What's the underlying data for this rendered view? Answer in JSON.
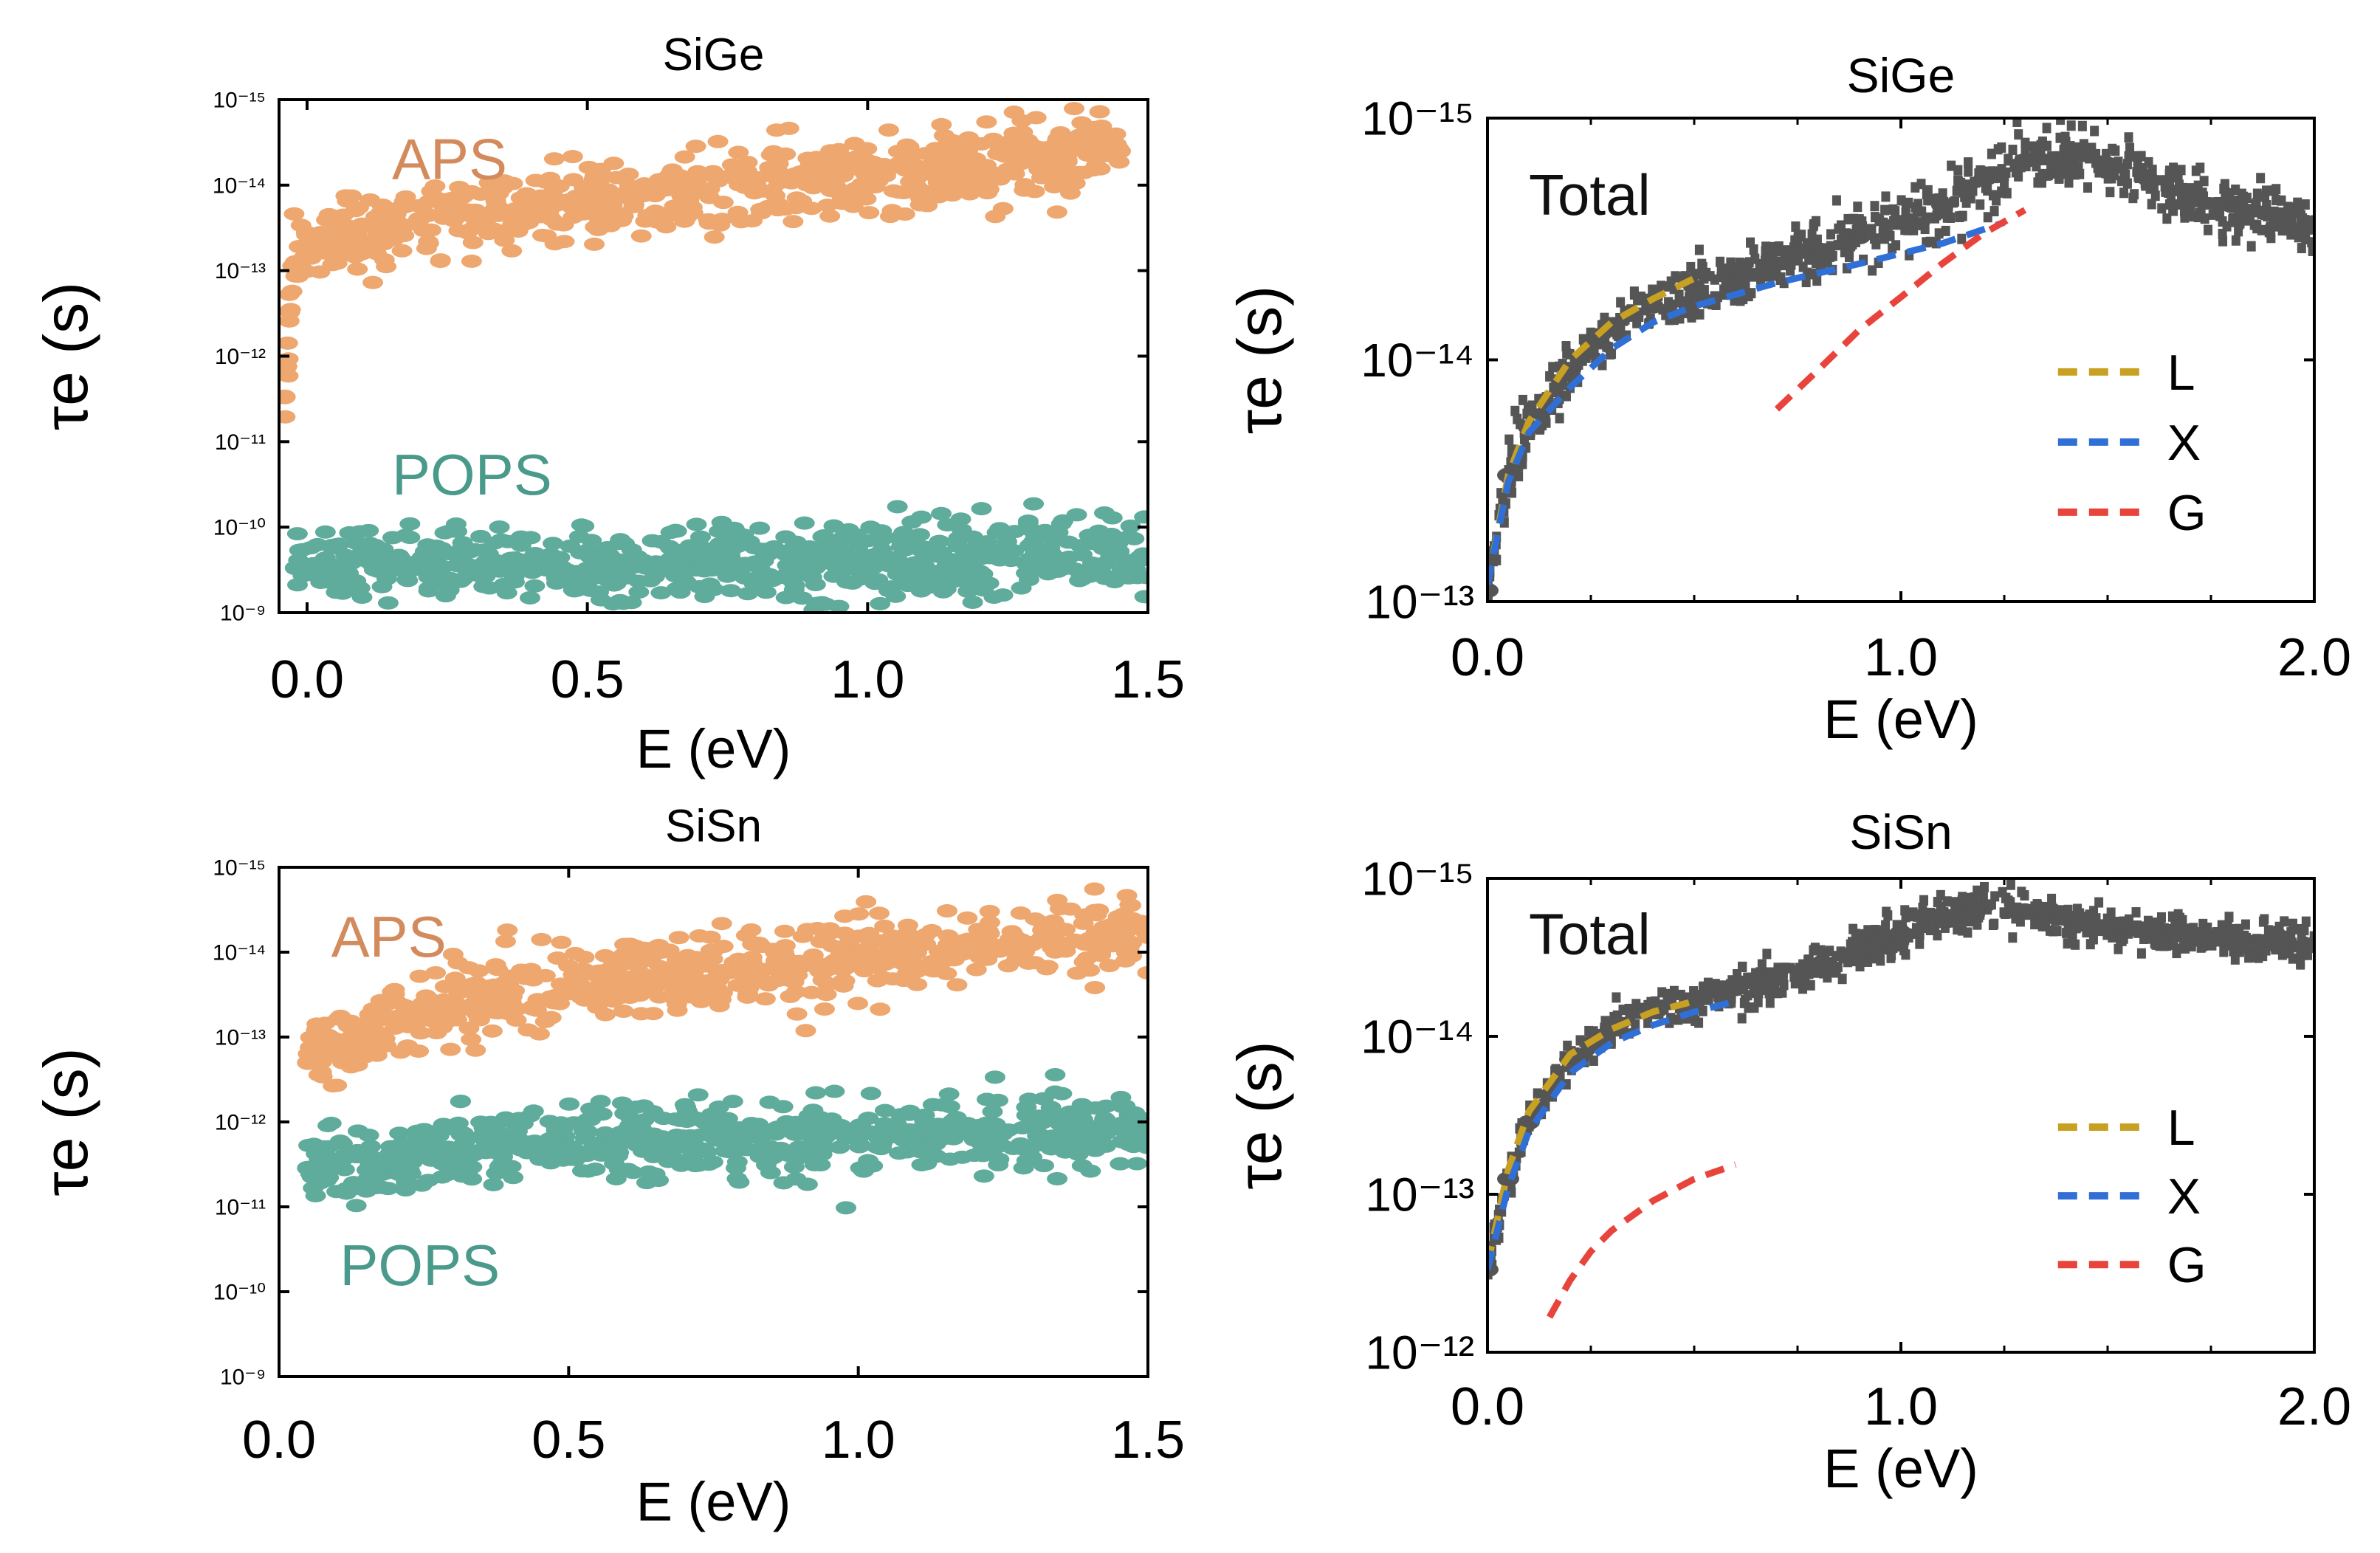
{
  "chart_data": [
    {
      "type": "scatter",
      "title": "SiGe",
      "xlabel": "E (eV)",
      "ylabel": "τe (s)",
      "xlim": [
        -0.05,
        1.5
      ],
      "ylim": [
        1e-09,
        1e-15
      ],
      "yscale": "log",
      "xticks": [
        "0.0",
        "0.5",
        "1.0",
        "1.5"
      ],
      "yticks": [
        "10⁻¹⁵",
        "10⁻¹⁴",
        "10⁻¹³",
        "10⁻¹²",
        "10⁻¹¹",
        "10⁻¹⁰",
        "10⁻⁹"
      ],
      "annotations": [
        "APS",
        "POPS"
      ],
      "series": [
        {
          "name": "APS",
          "color": "#eda76f",
          "x": [
            -0.04,
            -0.04,
            -0.02,
            0.0,
            0.1,
            0.2,
            0.3,
            0.4,
            0.5,
            0.6,
            0.7,
            0.8,
            0.9,
            1.0,
            1.1,
            1.2,
            1.3,
            1.4,
            1.45
          ],
          "y": [
            3e-12,
            1.5e-12,
            8e-14,
            5e-14,
            3e-14,
            2.5e-14,
            2e-14,
            1.8e-14,
            1.5e-14,
            1.3e-14,
            1.2e-14,
            1e-14,
            9e-15,
            8e-15,
            7e-15,
            6e-15,
            5e-15,
            4.5e-15,
            4e-15
          ]
        },
        {
          "name": "POPS",
          "color": "#5fab9c",
          "x": [
            -0.02,
            0.2,
            0.4,
            0.6,
            0.8,
            1.0,
            1.2,
            1.3,
            1.5
          ],
          "y": [
            3e-10,
            2.5e-10,
            2.6e-10,
            2.5e-10,
            2.6e-10,
            2.5e-10,
            2.3e-10,
            2e-10,
            2.2e-10
          ]
        }
      ]
    },
    {
      "type": "scatter",
      "title": "SiGe",
      "xlabel": "E (eV)",
      "ylabel": "τe (s)",
      "xlim": [
        0,
        2
      ],
      "ylim": [
        1e-13,
        1e-15
      ],
      "yscale": "log",
      "xticks": [
        "0.0",
        "1.0",
        "2.0"
      ],
      "yticks": [
        "10⁻¹⁵",
        "10⁻¹⁴",
        "10⁻¹³"
      ],
      "annotations": [
        "Total"
      ],
      "legend": {
        "location": "lower-right",
        "entries": [
          "L",
          "X",
          "G"
        ]
      },
      "series": [
        {
          "name": "Total",
          "color": "#555555",
          "x": [
            0.0,
            0.05,
            0.1,
            0.2,
            0.3,
            0.4,
            0.5,
            0.6,
            0.7,
            0.8,
            0.9,
            1.0,
            1.1,
            1.2,
            1.3,
            1.4,
            1.5,
            1.6,
            1.7,
            1.8,
            1.9,
            2.0
          ],
          "y": [
            9e-14,
            3e-14,
            1.9e-14,
            1.1e-14,
            7.5e-15,
            6e-15,
            5e-15,
            4.5e-15,
            4e-15,
            3.5e-15,
            3.1e-15,
            2.7e-15,
            2.3e-15,
            1.8e-15,
            1.5e-15,
            1.45e-15,
            1.55e-15,
            1.8e-15,
            2.1e-15,
            2.3e-15,
            2.5e-15,
            2.7e-15
          ]
        },
        {
          "name": "L",
          "color": "#c8a022",
          "x": [
            0.0,
            0.05,
            0.1,
            0.2,
            0.3,
            0.4,
            0.5
          ],
          "y": [
            8.5e-14,
            3e-14,
            1.8e-14,
            1e-14,
            7e-15,
            5.6e-15,
            4.6e-15
          ]
        },
        {
          "name": "X",
          "color": "#2f6fd6",
          "x": [
            0.0,
            0.05,
            0.1,
            0.2,
            0.3,
            0.4,
            0.5,
            0.7,
            0.9,
            1.1,
            1.25
          ],
          "y": [
            8.5e-14,
            3.2e-14,
            2e-14,
            1.3e-14,
            9e-15,
            7e-15,
            6e-15,
            4.8e-15,
            4e-15,
            3.3e-15,
            2.7e-15
          ]
        },
        {
          "name": "G",
          "color": "#e8443c",
          "x": [
            0.7,
            0.8,
            0.9,
            1.0,
            1.1,
            1.2,
            1.3
          ],
          "y": [
            1.6e-14,
            1.1e-14,
            7.5e-15,
            5.5e-15,
            4e-15,
            3e-15,
            2.4e-15
          ]
        }
      ]
    },
    {
      "type": "scatter",
      "title": "SiSn",
      "xlabel": "E (eV)",
      "ylabel": "τe (s)",
      "xlim": [
        0,
        1.5
      ],
      "ylim": [
        1e-09,
        1e-15
      ],
      "yscale": "log",
      "xticks": [
        "0.0",
        "0.5",
        "1.0",
        "1.5"
      ],
      "yticks": [
        "10⁻¹⁵",
        "10⁻¹⁴",
        "10⁻¹³",
        "10⁻¹²",
        "10⁻¹¹",
        "10⁻¹⁰",
        "10⁻⁹"
      ],
      "annotations": [
        "APS",
        "POPS"
      ],
      "series": [
        {
          "name": "APS",
          "color": "#eda76f",
          "x": [
            0.05,
            0.1,
            0.2,
            0.3,
            0.4,
            0.5,
            0.6,
            0.7,
            0.8,
            0.9,
            1.0,
            1.1,
            1.2,
            1.3,
            1.4,
            1.5
          ],
          "y": [
            2e-13,
            1.5e-13,
            6e-14,
            4e-14,
            3e-14,
            2.5e-14,
            2e-14,
            1.8e-14,
            1.6e-14,
            1.4e-14,
            1.2e-14,
            1e-14,
            9e-15,
            8e-15,
            7e-15,
            6e-15
          ]
        },
        {
          "name": "POPS",
          "color": "#5fab9c",
          "x": [
            0.05,
            0.2,
            0.4,
            0.6,
            0.8,
            1.0,
            1.2,
            1.4,
            1.5
          ],
          "y": [
            3.5e-12,
            2.8e-12,
            1.6e-12,
            1.6e-12,
            1.6e-12,
            1.5e-12,
            1.4e-12,
            1.3e-12,
            1.3e-12
          ]
        }
      ]
    },
    {
      "type": "scatter",
      "title": "SiSn",
      "xlabel": "E (eV)",
      "ylabel": "τe (s)",
      "xlim": [
        0,
        2
      ],
      "ylim": [
        1e-12,
        1e-15
      ],
      "yscale": "log",
      "xticks": [
        "0.0",
        "1.0",
        "2.0"
      ],
      "yticks": [
        "10⁻¹⁵",
        "10⁻¹⁴",
        "10⁻¹³",
        "10⁻¹²"
      ],
      "annotations": [
        "Total"
      ],
      "legend": {
        "location": "lower-right",
        "entries": [
          "L",
          "X",
          "G"
        ]
      },
      "series": [
        {
          "name": "Total",
          "color": "#555555",
          "x": [
            0.0,
            0.05,
            0.1,
            0.2,
            0.3,
            0.4,
            0.5,
            0.6,
            0.7,
            0.8,
            0.9,
            1.0,
            1.1,
            1.2,
            1.3,
            1.4,
            1.5,
            1.6,
            1.7,
            1.8,
            1.9,
            2.0
          ],
          "y": [
            3e-13,
            8e-14,
            3.5e-14,
            1.4e-14,
            9e-15,
            7e-15,
            6e-15,
            5e-15,
            4.2e-15,
            3.5e-15,
            2.8e-15,
            2.2e-15,
            1.7e-15,
            1.5e-15,
            1.6e-15,
            1.8e-15,
            2e-15,
            2.2e-15,
            2.4e-15,
            2.5e-15,
            2.5e-15,
            2.6e-15
          ]
        },
        {
          "name": "L",
          "color": "#c8a022",
          "x": [
            0.0,
            0.05,
            0.1,
            0.2,
            0.3,
            0.4,
            0.5
          ],
          "y": [
            2.8e-13,
            7e-14,
            3e-14,
            1.3e-14,
            9e-15,
            7e-15,
            6e-15
          ]
        },
        {
          "name": "X",
          "color": "#2f6fd6",
          "x": [
            0.0,
            0.05,
            0.1,
            0.2,
            0.3,
            0.4,
            0.5,
            0.6
          ],
          "y": [
            3e-13,
            9e-14,
            4e-14,
            1.7e-14,
            1.1e-14,
            8.5e-15,
            7e-15,
            6e-15
          ]
        },
        {
          "name": "G",
          "color": "#e8443c",
          "x": [
            0.15,
            0.2,
            0.25,
            0.3,
            0.4,
            0.5,
            0.6
          ],
          "y": [
            6e-13,
            3.5e-13,
            2.3e-13,
            1.7e-13,
            1.1e-13,
            8e-14,
            6.5e-14
          ]
        }
      ]
    }
  ]
}
